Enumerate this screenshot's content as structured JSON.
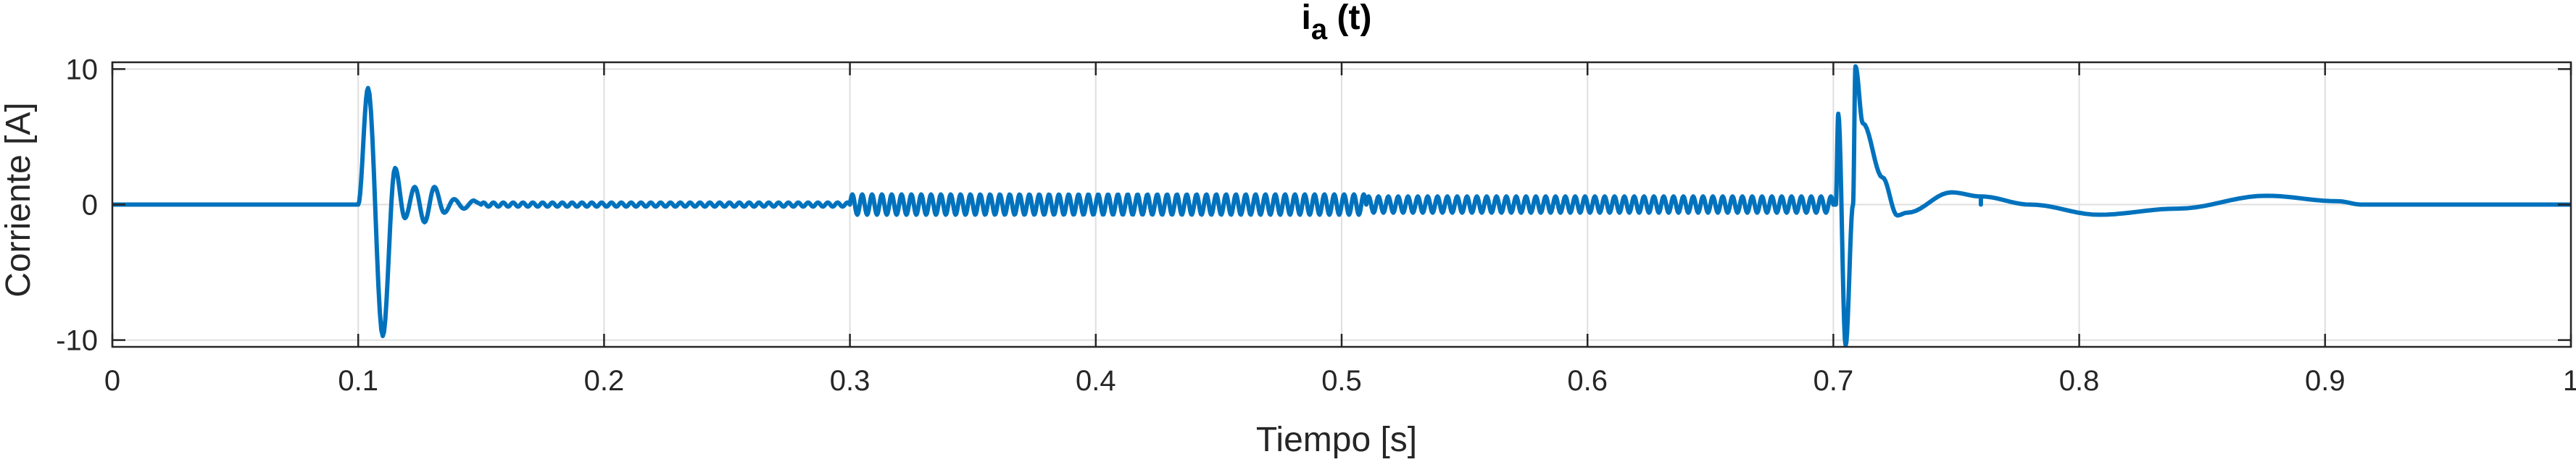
{
  "chart_data": {
    "type": "line",
    "title": {
      "main": "i",
      "subscript": "a",
      "suffix": " (t)"
    },
    "xlabel": "Tiempo [s]",
    "ylabel": "Corriente [A]",
    "xlim": [
      0,
      1
    ],
    "ylim": [
      -10.5,
      10.5
    ],
    "xticks": [
      0,
      0.1,
      0.2,
      0.3,
      0.4,
      0.5,
      0.6,
      0.7,
      0.8,
      0.9,
      1
    ],
    "xtick_labels": [
      "0",
      "0.1",
      "0.2",
      "0.3",
      "0.4",
      "0.5",
      "0.6",
      "0.7",
      "0.8",
      "0.9",
      "1"
    ],
    "yticks": [
      -10,
      0,
      10
    ],
    "ytick_labels": [
      "-10",
      "0",
      "10"
    ],
    "grid": true,
    "series": [
      {
        "color": "#0072BD",
        "segments": [
          {
            "t0": 0.0,
            "t1": 0.1,
            "kind": "constant",
            "value": 0
          },
          {
            "t0": 0.1,
            "t1": 0.15,
            "kind": "transient",
            "peaks": [
              [
                0.104,
                8.6
              ],
              [
                0.11,
                -9.7
              ],
              [
                0.115,
                2.7
              ],
              [
                0.119,
                -1.0
              ],
              [
                0.123,
                1.3
              ],
              [
                0.127,
                -1.3
              ],
              [
                0.131,
                1.3
              ],
              [
                0.135,
                -0.6
              ],
              [
                0.139,
                0.4
              ],
              [
                0.143,
                -0.3
              ],
              [
                0.147,
                0.3
              ]
            ]
          },
          {
            "t0": 0.15,
            "t1": 0.3,
            "kind": "oscillation",
            "amplitude": 0.15,
            "frequency_hz": 250
          },
          {
            "t0": 0.3,
            "t1": 0.51,
            "kind": "oscillation",
            "amplitude": 0.75,
            "frequency_hz": 250
          },
          {
            "t0": 0.51,
            "t1": 0.7,
            "kind": "oscillation",
            "amplitude": 0.6,
            "frequency_hz": 250
          },
          {
            "t0": 0.7,
            "t1": 0.76,
            "kind": "transient",
            "peaks": [
              [
                0.701,
                0
              ],
              [
                0.702,
                6.7
              ],
              [
                0.705,
                -10.4
              ],
              [
                0.708,
                0
              ],
              [
                0.709,
                10.2
              ],
              [
                0.712,
                6.0
              ],
              [
                0.72,
                2.0
              ],
              [
                0.726,
                -0.8
              ],
              [
                0.73,
                -0.6
              ],
              [
                0.748,
                0.9
              ],
              [
                0.76,
                0.6
              ]
            ]
          },
          {
            "t0": 0.76,
            "t1": 0.93,
            "kind": "transient",
            "peaks": [
              [
                0.76,
                0.6
              ],
              [
                0.78,
                0
              ],
              [
                0.808,
                -0.75
              ],
              [
                0.84,
                -0.3
              ],
              [
                0.876,
                0.65
              ],
              [
                0.905,
                0.25
              ],
              [
                0.915,
                0
              ],
              [
                0.93,
                0
              ]
            ]
          },
          {
            "t0": 0.93,
            "t1": 1.0,
            "kind": "constant",
            "value": 0
          }
        ]
      }
    ]
  }
}
